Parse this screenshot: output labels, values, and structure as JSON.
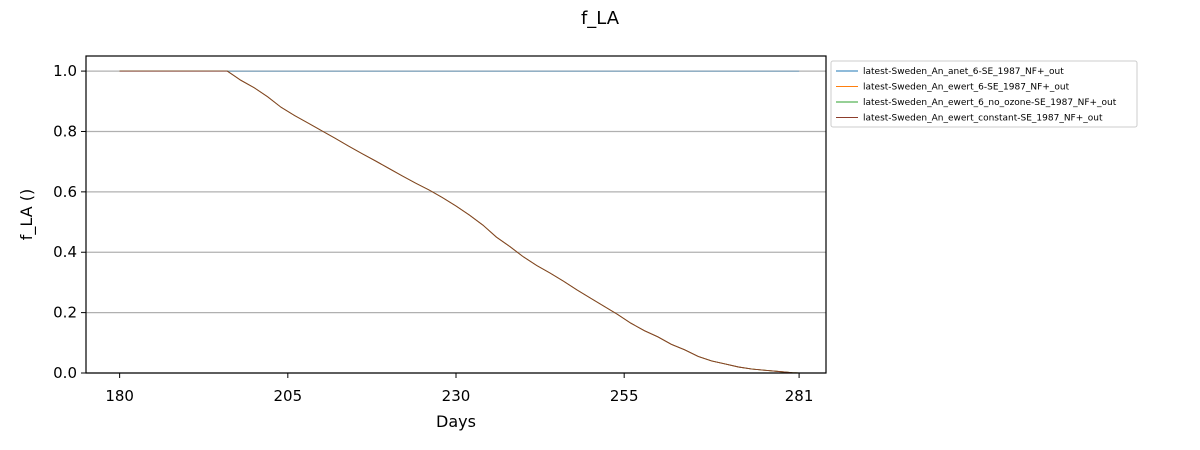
{
  "chart_data": {
    "type": "line",
    "title": "f_LA",
    "xlabel": "Days",
    "ylabel": "f_LA ()",
    "xlim": [
      175,
      285
    ],
    "ylim": [
      0,
      1.05
    ],
    "xticks": [
      180,
      205,
      230,
      255,
      281
    ],
    "yticks": [
      0.0,
      0.2,
      0.4,
      0.6,
      0.8,
      1.0
    ],
    "ytick_labels": [
      "0.0",
      "0.2",
      "0.4",
      "0.6",
      "0.8",
      "1.0"
    ],
    "grid": "y-major",
    "legend_position": "outside-right-top",
    "series": [
      {
        "name": "latest-Sweden_An_anet_6-SE_1987_NF+_out",
        "color": "#1f77b4",
        "x": [
          180,
          281
        ],
        "y": [
          1.0,
          1.0
        ]
      },
      {
        "name": "latest-Sweden_An_ewert_6-SE_1987_NF+_out",
        "color": "#ff7f0e",
        "x": [
          180,
          196,
          197,
          198,
          200,
          202,
          204,
          206,
          208,
          210,
          212,
          214,
          216,
          218,
          220,
          222,
          224,
          226,
          228,
          230,
          232,
          234,
          236,
          238,
          240,
          242,
          244,
          246,
          248,
          250,
          252,
          254,
          256,
          258,
          260,
          262,
          264,
          266,
          268,
          270,
          272,
          274,
          276,
          278,
          280,
          281
        ],
        "y": [
          1.0,
          1.0,
          0.985,
          0.97,
          0.945,
          0.915,
          0.88,
          0.853,
          0.828,
          0.803,
          0.778,
          0.752,
          0.727,
          0.703,
          0.678,
          0.653,
          0.629,
          0.606,
          0.581,
          0.553,
          0.523,
          0.49,
          0.45,
          0.419,
          0.385,
          0.356,
          0.331,
          0.304,
          0.275,
          0.248,
          0.221,
          0.194,
          0.165,
          0.14,
          0.12,
          0.095,
          0.077,
          0.055,
          0.04,
          0.03,
          0.02,
          0.013,
          0.009,
          0.005,
          0.001,
          0.0
        ]
      },
      {
        "name": "latest-Sweden_An_ewert_6_no_ozone-SE_1987_NF+_out",
        "color": "#2ca02c",
        "x": [
          180,
          196,
          197,
          198,
          200,
          202,
          204,
          206,
          208,
          210,
          212,
          214,
          216,
          218,
          220,
          222,
          224,
          226,
          228,
          230,
          232,
          234,
          236,
          238,
          240,
          242,
          244,
          246,
          248,
          250,
          252,
          254,
          256,
          258,
          260,
          262,
          264,
          266,
          268,
          270,
          272,
          274,
          276,
          278,
          280,
          281
        ],
        "y": [
          1.0,
          1.0,
          0.985,
          0.97,
          0.945,
          0.915,
          0.88,
          0.853,
          0.828,
          0.803,
          0.778,
          0.752,
          0.727,
          0.703,
          0.678,
          0.653,
          0.629,
          0.606,
          0.581,
          0.553,
          0.523,
          0.49,
          0.45,
          0.419,
          0.385,
          0.356,
          0.331,
          0.304,
          0.275,
          0.248,
          0.221,
          0.194,
          0.165,
          0.14,
          0.12,
          0.095,
          0.077,
          0.055,
          0.04,
          0.03,
          0.02,
          0.013,
          0.009,
          0.005,
          0.001,
          0.0
        ]
      },
      {
        "name": "latest-Sweden_An_ewert_constant-SE_1987_NF+_out",
        "color": "#8c3d2b",
        "x": [
          180,
          196,
          197,
          198,
          200,
          202,
          204,
          206,
          208,
          210,
          212,
          214,
          216,
          218,
          220,
          222,
          224,
          226,
          228,
          230,
          232,
          234,
          236,
          238,
          240,
          242,
          244,
          246,
          248,
          250,
          252,
          254,
          256,
          258,
          260,
          262,
          264,
          266,
          268,
          270,
          272,
          274,
          276,
          278,
          280,
          281
        ],
        "y": [
          1.0,
          1.0,
          0.985,
          0.97,
          0.945,
          0.915,
          0.88,
          0.853,
          0.828,
          0.803,
          0.778,
          0.752,
          0.727,
          0.703,
          0.678,
          0.653,
          0.629,
          0.606,
          0.581,
          0.553,
          0.523,
          0.49,
          0.45,
          0.419,
          0.385,
          0.356,
          0.331,
          0.304,
          0.275,
          0.248,
          0.221,
          0.194,
          0.165,
          0.14,
          0.12,
          0.095,
          0.077,
          0.055,
          0.04,
          0.03,
          0.02,
          0.013,
          0.009,
          0.005,
          0.001,
          0.0
        ]
      }
    ]
  }
}
